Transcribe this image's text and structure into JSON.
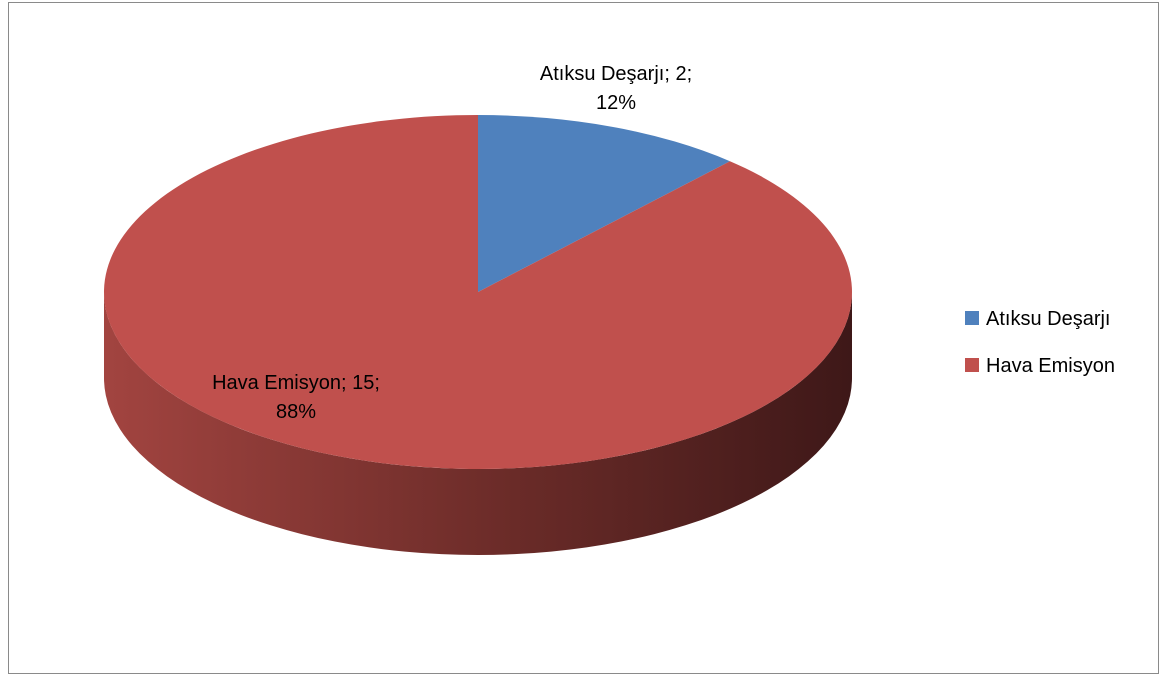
{
  "chart_data": {
    "type": "pie",
    "style": "3d",
    "title": "",
    "categories": [
      "Atıksu Deşarjı",
      "Hava Emisyon"
    ],
    "values": [
      2,
      15
    ],
    "percents": [
      "12%",
      "88%"
    ],
    "colors": [
      "#4F81BD",
      "#C0504D"
    ],
    "side_colors": [
      "#2f5b8f",
      "#8c3a37"
    ],
    "data_labels": [
      {
        "line1": "Atıksu Deşarjı; 2;",
        "line2": "12%"
      },
      {
        "line1": "Hava Emisyon; 15;",
        "line2": "88%"
      }
    ],
    "legend": {
      "placement": "right",
      "entries": [
        "Atıksu Deşarjı",
        "Hava Emisyon"
      ]
    }
  }
}
